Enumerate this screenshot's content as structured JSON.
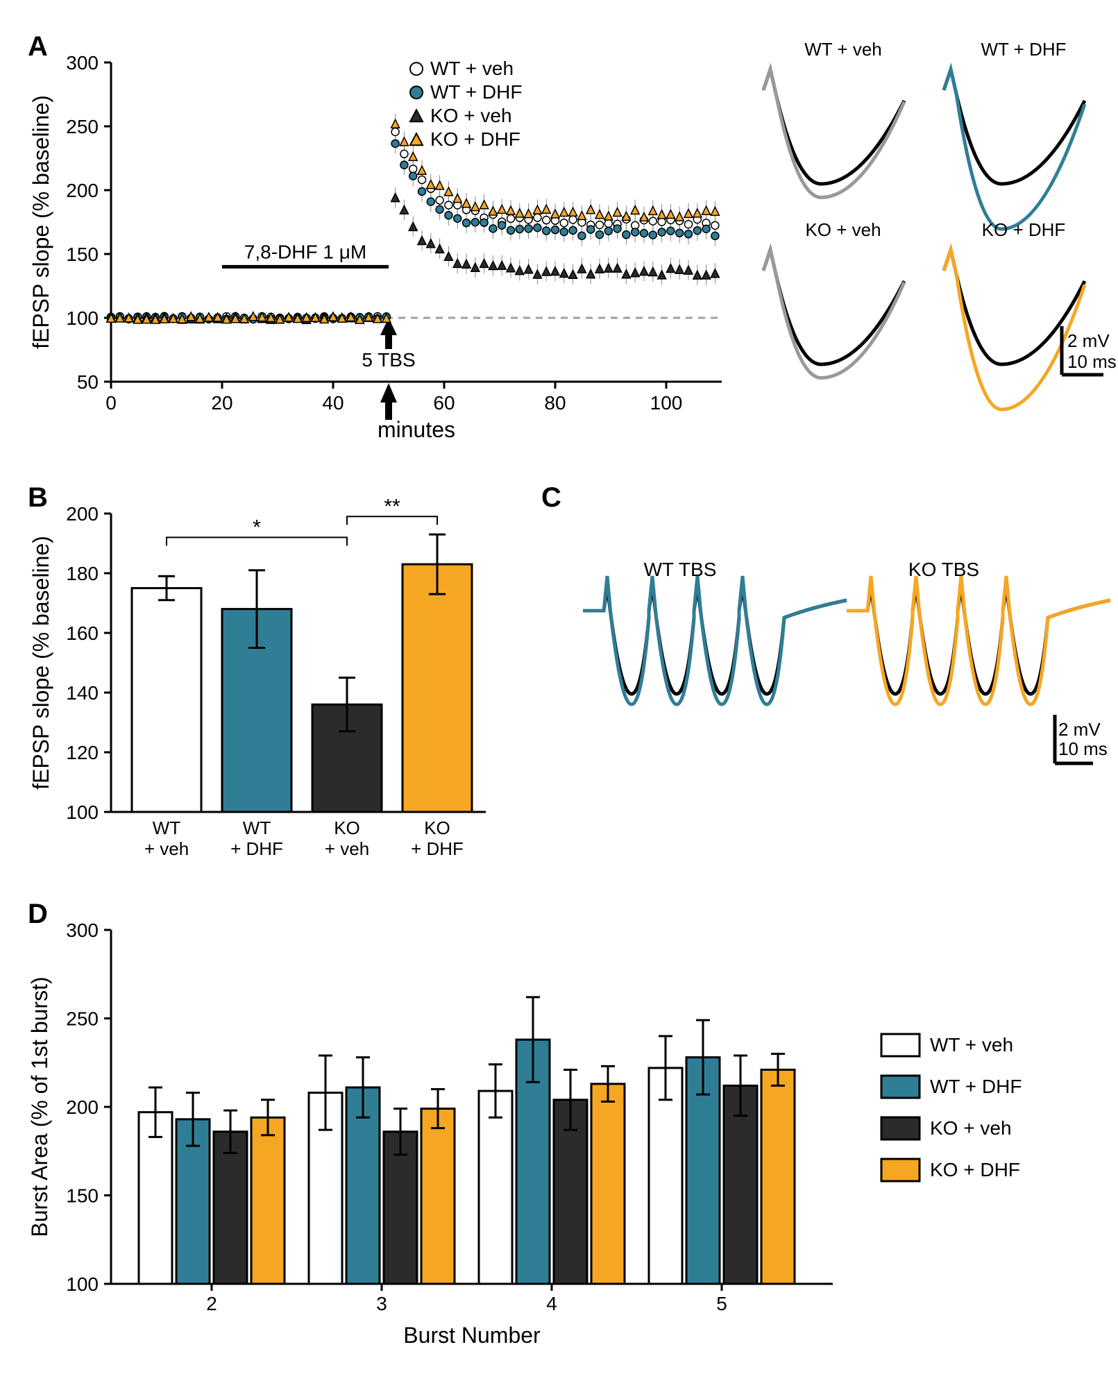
{
  "colors": {
    "wt_veh_fill": "#ffffff",
    "wt_veh_stroke": "#000000",
    "wt_dhf": "#2f7e96",
    "ko_veh": "#2b2b2b",
    "ko_dhf": "#f5a623",
    "axis": "#000000",
    "dashed": "#a0a0a0",
    "trace_gray": "#999999",
    "black": "#000000"
  },
  "fonts": {
    "panel_label_size": 40,
    "axis_label_size": 32,
    "tick_size": 28,
    "legend_size": 28
  },
  "panelA": {
    "label": "A",
    "ylabel": "fEPSP slope  (% baseline)",
    "xlabel": "minutes",
    "xlim": [
      0,
      110
    ],
    "ylim": [
      50,
      300
    ],
    "xticks": [
      0,
      20,
      40,
      60,
      80,
      100
    ],
    "yticks": [
      50,
      100,
      150,
      200,
      250,
      300
    ],
    "drug_label": "7,8-DHF 1 μM",
    "drug_bar": [
      20,
      50
    ],
    "tbs_label": "5 TBS",
    "tbs_x": 50,
    "legend": [
      {
        "label": "WT + veh",
        "marker": "circle",
        "fill": "#ffffff",
        "stroke": "#000000"
      },
      {
        "label": "WT + DHF",
        "marker": "circle",
        "fill": "#2f7e96",
        "stroke": "#000000"
      },
      {
        "label": "KO + veh",
        "marker": "triangle",
        "fill": "#2b2b2b",
        "stroke": "#000000"
      },
      {
        "label": "KO + DHF",
        "marker": "triangle",
        "fill": "#f5a623",
        "stroke": "#000000"
      }
    ],
    "traces": {
      "titles": [
        "WT + veh",
        "WT + DHF",
        "KO + veh",
        "KO + DHF"
      ],
      "scale_v": "2 mV",
      "scale_t": "10 ms"
    }
  },
  "panelB": {
    "label": "B",
    "ylabel": "fEPSP slope  (% baseline)",
    "ylim": [
      100,
      200
    ],
    "yticks": [
      100,
      120,
      140,
      160,
      180,
      200
    ],
    "bars": [
      {
        "label_top": "WT",
        "label_bot": "+ veh",
        "value": 175,
        "err": 4,
        "fill": "#ffffff",
        "stroke": "#000000"
      },
      {
        "label_top": "WT",
        "label_bot": "+ DHF",
        "value": 168,
        "err": 13,
        "fill": "#2f7e96",
        "stroke": "#000000"
      },
      {
        "label_top": "KO",
        "label_bot": "+ veh",
        "value": 136,
        "err": 9,
        "fill": "#2b2b2b",
        "stroke": "#000000"
      },
      {
        "label_top": "KO",
        "label_bot": "+ DHF",
        "value": 183,
        "err": 10,
        "fill": "#f5a623",
        "stroke": "#000000"
      }
    ],
    "sig": [
      {
        "from": 0,
        "to": 2,
        "label": "*",
        "y": 192
      },
      {
        "from": 2,
        "to": 3,
        "label": "**",
        "y": 199
      }
    ]
  },
  "panelC": {
    "label": "C",
    "titles": [
      "WT TBS",
      "KO TBS"
    ],
    "scale_v": "2 mV",
    "scale_t": "10 ms"
  },
  "panelD": {
    "label": "D",
    "ylabel": "Burst Area  (% of 1st burst)",
    "xlabel": "Burst Number",
    "ylim": [
      100,
      300
    ],
    "yticks": [
      100,
      150,
      200,
      250,
      300
    ],
    "xcats": [
      "2",
      "3",
      "4",
      "5"
    ],
    "series": [
      {
        "label": "WT + veh",
        "fill": "#ffffff",
        "stroke": "#000000"
      },
      {
        "label": "WT + DHF",
        "fill": "#2f7e96",
        "stroke": "#000000"
      },
      {
        "label": "KO + veh",
        "fill": "#2b2b2b",
        "stroke": "#000000"
      },
      {
        "label": "KO + DHF",
        "fill": "#f5a623",
        "stroke": "#000000"
      }
    ],
    "data": {
      "wt_veh": {
        "values": [
          197,
          208,
          209,
          222
        ],
        "err": [
          14,
          21,
          15,
          18
        ]
      },
      "wt_dhf": {
        "values": [
          193,
          211,
          238,
          228
        ],
        "err": [
          15,
          17,
          24,
          21
        ]
      },
      "ko_veh": {
        "values": [
          186,
          186,
          204,
          212
        ],
        "err": [
          12,
          13,
          17,
          17
        ]
      },
      "ko_dhf": {
        "values": [
          194,
          199,
          213,
          221
        ],
        "err": [
          10,
          11,
          10,
          9
        ]
      }
    }
  }
}
